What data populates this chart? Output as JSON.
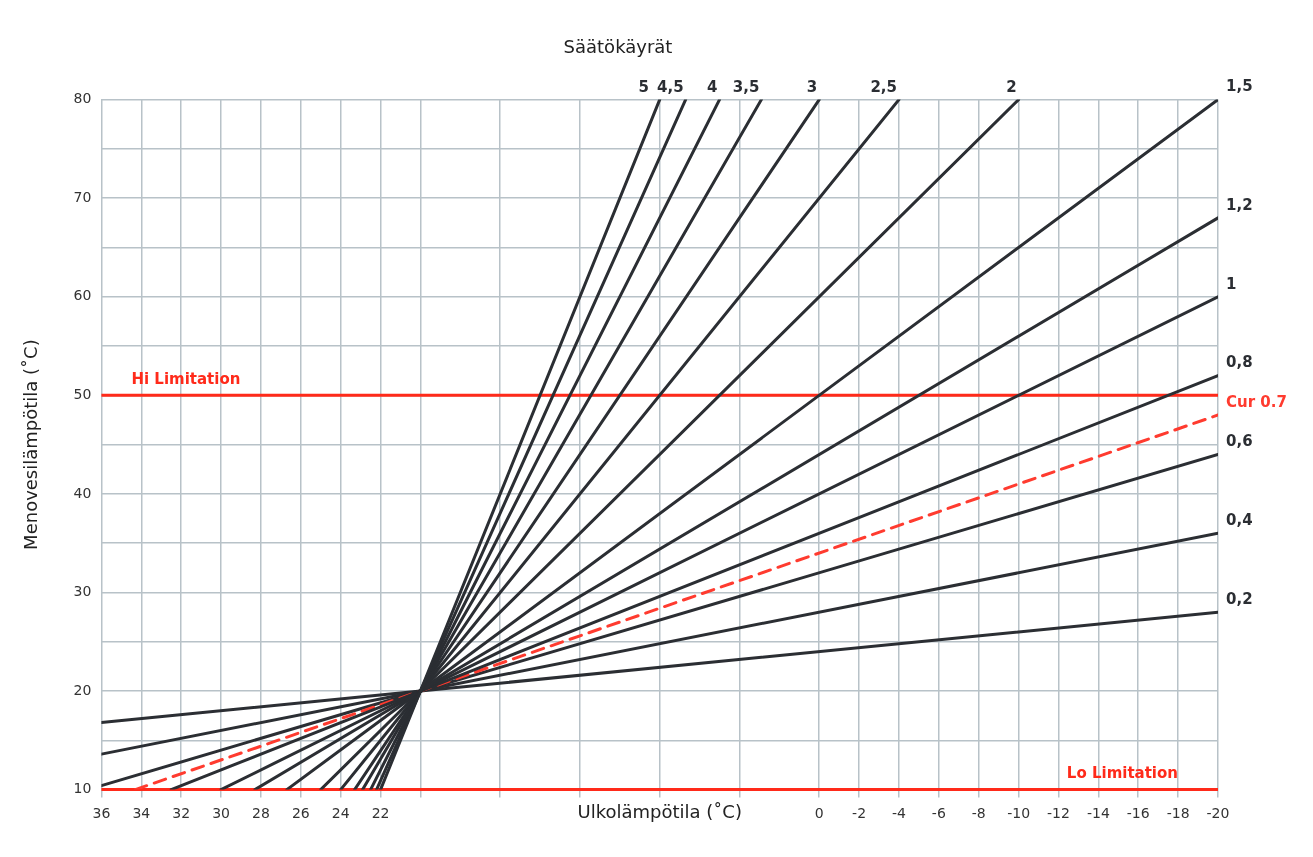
{
  "chart_data": {
    "type": "line",
    "title": "Säätökäyrät",
    "xlabel": "Ulkolämpötila (˚C)",
    "ylabel": "Menovesilämpötila (˚C)",
    "xlim": [
      36,
      -20
    ],
    "ylim": [
      10,
      80
    ],
    "xticks": [
      36,
      34,
      32,
      30,
      28,
      26,
      24,
      22,
      {
        "value": 20,
        "label": null
      },
      {
        "value": 16,
        "label": null
      },
      {
        "value": 12,
        "label": null
      },
      {
        "value": 8,
        "label": null
      },
      {
        "value": 4,
        "label": null
      },
      0,
      -2,
      -4,
      -6,
      -8,
      -10,
      -12,
      -14,
      -16,
      -18,
      -20
    ],
    "yticks": [
      10,
      {
        "value": 15,
        "label": null
      },
      20,
      {
        "value": 25,
        "label": null
      },
      30,
      {
        "value": 35,
        "label": null
      },
      40,
      {
        "value": 45,
        "label": null
      },
      50,
      {
        "value": 55,
        "label": null
      },
      60,
      {
        "value": 65,
        "label": null
      },
      70,
      {
        "value": 75,
        "label": null
      },
      80
    ],
    "grid": true,
    "legend": false,
    "marker": "none",
    "series": [
      {
        "name": "5",
        "color": "#2b2e33",
        "x": [
          22,
          20,
          8
        ],
        "values": [
          10,
          20,
          80
        ]
      },
      {
        "name": "4,5",
        "color": "#2b2e33",
        "x": [
          22.2,
          20,
          6.7
        ],
        "values": [
          10,
          20,
          80
        ]
      },
      {
        "name": "4",
        "color": "#2b2e33",
        "x": [
          22.5,
          20,
          5
        ],
        "values": [
          10,
          20,
          80
        ]
      },
      {
        "name": "3,5",
        "color": "#2b2e33",
        "x": [
          22.9,
          20,
          2.9
        ],
        "values": [
          10,
          20,
          80
        ]
      },
      {
        "name": "3",
        "color": "#2b2e33",
        "x": [
          23.3,
          20,
          0
        ],
        "values": [
          10,
          20,
          80
        ]
      },
      {
        "name": "2,5",
        "color": "#2b2e33",
        "x": [
          24,
          20,
          -4
        ],
        "values": [
          10,
          20,
          80
        ]
      },
      {
        "name": "2",
        "color": "#2b2e33",
        "x": [
          25,
          20,
          -10
        ],
        "values": [
          10,
          20,
          80
        ]
      },
      {
        "name": "1,5",
        "color": "#2b2e33",
        "x": [
          26.7,
          20,
          -20
        ],
        "values": [
          10,
          20,
          80
        ]
      },
      {
        "name": "1,2",
        "color": "#2b2e33",
        "x": [
          28.3,
          20,
          -20
        ],
        "values": [
          10,
          20,
          68
        ]
      },
      {
        "name": "1",
        "color": "#2b2e33",
        "x": [
          30,
          20,
          -20
        ],
        "values": [
          10,
          20,
          60
        ]
      },
      {
        "name": "0,8",
        "color": "#2b2e33",
        "x": [
          32.5,
          20,
          -20
        ],
        "values": [
          10,
          20,
          52
        ]
      },
      {
        "name": "Cur 0.7",
        "color": "#ff3b2f",
        "line_style": "dashed",
        "x": [
          34.3,
          20,
          -20
        ],
        "values": [
          10,
          20,
          48
        ]
      },
      {
        "name": "0,6",
        "color": "#2b2e33",
        "x": [
          36,
          20,
          -20
        ],
        "values": [
          10.4,
          20,
          44
        ]
      },
      {
        "name": "0,4",
        "color": "#2b2e33",
        "x": [
          36,
          20,
          -20
        ],
        "values": [
          13.6,
          20,
          36
        ]
      },
      {
        "name": "0,2",
        "color": "#2b2e33",
        "x": [
          36,
          20,
          -20
        ],
        "values": [
          16.8,
          20,
          28
        ]
      }
    ],
    "ref_lines": [
      {
        "axis": "y",
        "value": 50,
        "label": "Hi Limitation",
        "color": "#ff2a1a"
      },
      {
        "axis": "y",
        "value": 10,
        "label": "Lo Limitation",
        "color": "#ff2a1a"
      }
    ]
  }
}
